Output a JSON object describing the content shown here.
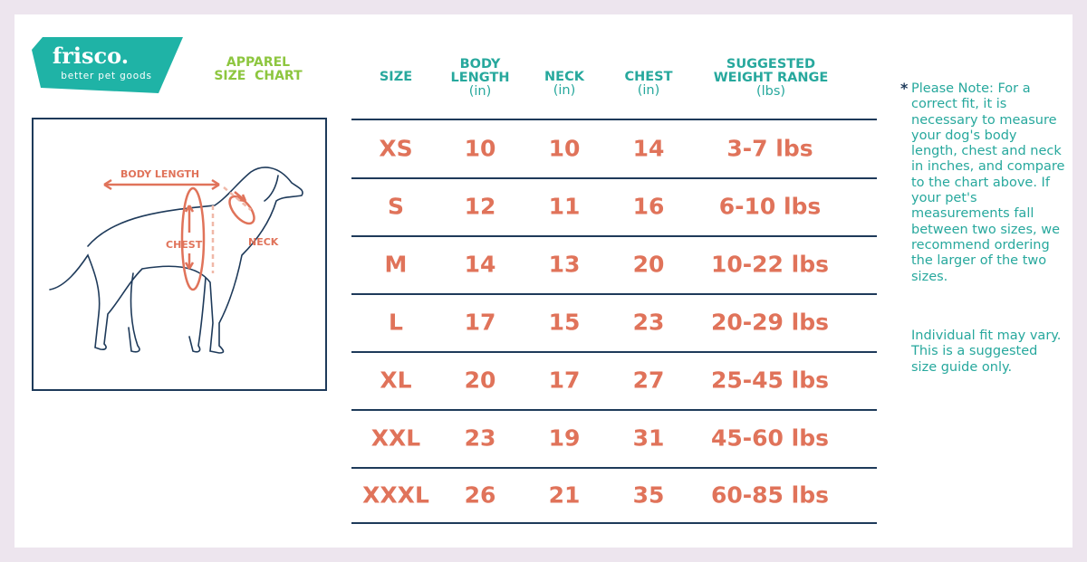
{
  "brand": {
    "name": "frisco.",
    "tagline": "better pet goods",
    "color": "#1fb3a6"
  },
  "title": {
    "line1": "APPAREL",
    "line2": "SIZE  CHART",
    "color": "#8dc63f"
  },
  "illustration": {
    "labels": {
      "body_length": "BODY LENGTH",
      "chest": "CHEST",
      "neck": "NECK"
    }
  },
  "table": {
    "headers": [
      {
        "label": "SIZE",
        "unit": ""
      },
      {
        "label": "BODY LENGTH",
        "unit": "(in)"
      },
      {
        "label": "NECK",
        "unit": "(in)"
      },
      {
        "label": "CHEST",
        "unit": "(in)"
      },
      {
        "label": "SUGGESTED WEIGHT RANGE",
        "unit": "(lbs)"
      }
    ],
    "rows": [
      [
        "XS",
        "10",
        "10",
        "14",
        "3-7 lbs"
      ],
      [
        "S",
        "12",
        "11",
        "16",
        "6-10 lbs"
      ],
      [
        "M",
        "14",
        "13",
        "20",
        "10-22 lbs"
      ],
      [
        "L",
        "17",
        "15",
        "23",
        "20-29 lbs"
      ],
      [
        "XL",
        "20",
        "17",
        "27",
        "25-45 lbs"
      ],
      [
        "XXL",
        "23",
        "19",
        "31",
        "45-60 lbs"
      ],
      [
        "XXXL",
        "26",
        "21",
        "35",
        "60-85 lbs"
      ]
    ],
    "value_color": "#e0735a",
    "header_color": "#27a89d"
  },
  "note": {
    "asterisk": "*",
    "text": "Please Note: For a correct fit, it is necessary to measure your dog's body length, chest and neck in inches, and compare to the chart above. If your pet's measurements fall between two sizes, we recommend ordering the larger of the two sizes.",
    "disclaimer": "Individual fit may vary. This is a suggested size guide only."
  }
}
